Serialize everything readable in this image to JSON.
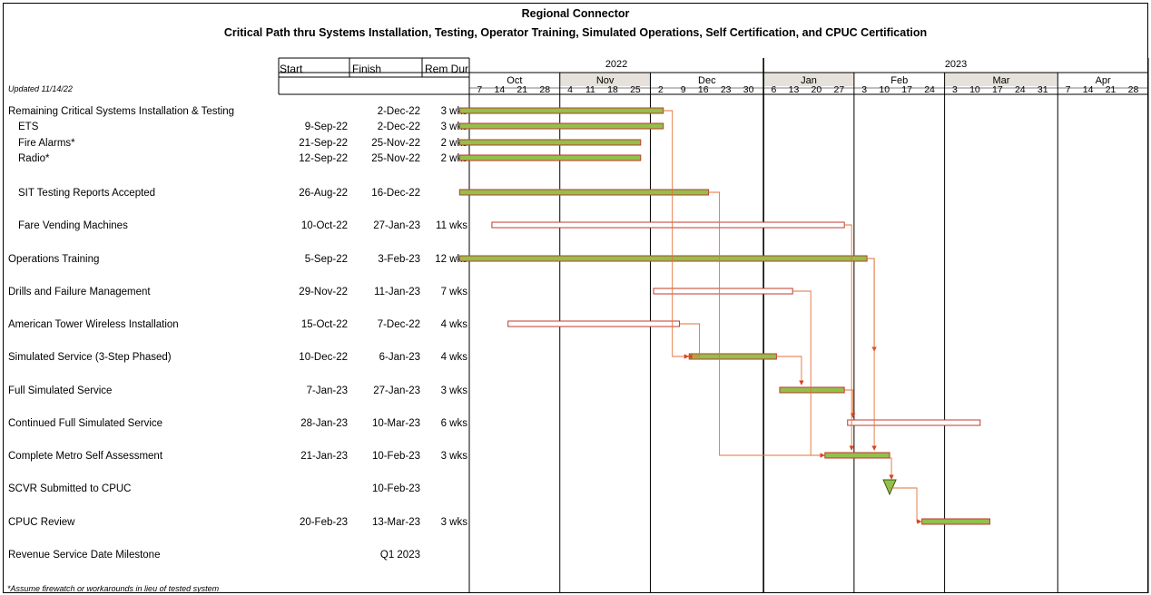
{
  "header": {
    "title": "Regional Connector",
    "subtitle": "Critical Path thru Systems Installation, Testing, Operator Training, Simulated Operations, Self Certification, and CPUC Certification",
    "updated": "Updated 11/14/22",
    "col_start": "Start",
    "col_finish": "Finish",
    "col_remdur": "Rem Dur",
    "footnote": "*Assume firewatch or workarounds in lieu of tested system"
  },
  "chart_data": {
    "type": "gantt",
    "years": [
      {
        "label": "2022",
        "months": [
          "Oct",
          "Nov",
          "Dec"
        ]
      },
      {
        "label": "2023",
        "months": [
          "Jan",
          "Feb",
          "Mar",
          "Apr"
        ]
      }
    ],
    "months": [
      {
        "label": "Oct",
        "start": "2022-10-03",
        "days": [
          "7",
          "14",
          "21",
          "28"
        ],
        "shaded": false
      },
      {
        "label": "Nov",
        "start": "2022-10-31",
        "days": [
          "4",
          "11",
          "18",
          "25"
        ],
        "shaded": true
      },
      {
        "label": "Dec",
        "start": "2022-11-28",
        "days": [
          "2",
          "9",
          "16",
          "23",
          "30"
        ],
        "shaded": false
      },
      {
        "label": "Jan",
        "start": "2023-01-02",
        "days": [
          "6",
          "13",
          "20",
          "27"
        ],
        "shaded": true
      },
      {
        "label": "Feb",
        "start": "2023-01-30",
        "days": [
          "3",
          "10",
          "17",
          "24"
        ],
        "shaded": false
      },
      {
        "label": "Mar",
        "start": "2023-02-27",
        "days": [
          "3",
          "10",
          "17",
          "24",
          "31"
        ],
        "shaded": true
      },
      {
        "label": "Apr",
        "start": "2023-04-03",
        "days": [
          "7",
          "14",
          "21",
          "28"
        ],
        "shaded": false
      }
    ],
    "timeline_end": "2023-05-01",
    "tasks": [
      {
        "name": "Remaining Critical Systems Installation & Testing",
        "start": "",
        "finish": "2-Dec-22",
        "dur": "3 wks",
        "bar_start": "2022-09-30",
        "bar_end": "2022-12-02",
        "style": "critical",
        "indent": false
      },
      {
        "name": "ETS",
        "start": "9-Sep-22",
        "finish": "2-Dec-22",
        "dur": "3 wks",
        "bar_start": "2022-09-30",
        "bar_end": "2022-12-02",
        "style": "critical",
        "indent": true
      },
      {
        "name": "Fire Alarms*",
        "start": "21-Sep-22",
        "finish": "25-Nov-22",
        "dur": "2 wks",
        "bar_start": "2022-09-30",
        "bar_end": "2022-11-25",
        "style": "critical",
        "indent": true
      },
      {
        "name": "Radio*",
        "start": "12-Sep-22",
        "finish": "25-Nov-22",
        "dur": "2 wks",
        "bar_start": "2022-09-30",
        "bar_end": "2022-11-25",
        "style": "critical",
        "indent": true
      },
      {
        "name": "SIT Testing Reports Accepted",
        "start": "26-Aug-22",
        "finish": "16-Dec-22",
        "dur": "",
        "bar_start": "2022-09-30",
        "bar_end": "2022-12-16",
        "style": "critical",
        "indent": true
      },
      {
        "name": "Fare Vending Machines",
        "start": "10-Oct-22",
        "finish": "27-Jan-23",
        "dur": "11 wks",
        "bar_start": "2022-10-10",
        "bar_end": "2023-01-27",
        "style": "noncritical",
        "indent": true
      },
      {
        "name": "Operations Training",
        "start": "5-Sep-22",
        "finish": "3-Feb-23",
        "dur": "12 wks",
        "bar_start": "2022-09-30",
        "bar_end": "2023-02-03",
        "style": "critical",
        "indent": false
      },
      {
        "name": "Drills and Failure Management",
        "start": "29-Nov-22",
        "finish": "11-Jan-23",
        "dur": "7 wks",
        "bar_start": "2022-11-29",
        "bar_end": "2023-01-11",
        "style": "noncritical",
        "indent": false
      },
      {
        "name": "American Tower Wireless Installation",
        "start": "15-Oct-22",
        "finish": "7-Dec-22",
        "dur": "4 wks",
        "bar_start": "2022-10-15",
        "bar_end": "2022-12-07",
        "style": "noncritical",
        "indent": false
      },
      {
        "name": "Simulated Service (3-Step Phased)",
        "start": "10-Dec-22",
        "finish": "6-Jan-23",
        "dur": "4 wks",
        "bar_start": "2022-12-10",
        "bar_end": "2023-01-06",
        "style": "critical",
        "indent": false
      },
      {
        "name": "Full Simulated Service",
        "start": "7-Jan-23",
        "finish": "27-Jan-23",
        "dur": "3 wks",
        "bar_start": "2023-01-07",
        "bar_end": "2023-01-27",
        "style": "critical",
        "indent": false
      },
      {
        "name": "Continued Full Simulated Service",
        "start": "28-Jan-23",
        "finish": "10-Mar-23",
        "dur": "6 wks",
        "bar_start": "2023-01-28",
        "bar_end": "2023-03-10",
        "style": "noncritical",
        "indent": false
      },
      {
        "name": "Complete Metro Self Assessment",
        "start": "21-Jan-23",
        "finish": "10-Feb-23",
        "dur": "3 wks",
        "bar_start": "2023-01-21",
        "bar_end": "2023-02-10",
        "style": "critical",
        "indent": false
      },
      {
        "name": "SCVR Submitted to CPUC",
        "start": "",
        "finish": "10-Feb-23",
        "dur": "",
        "bar_start": "2023-02-10",
        "bar_end": "2023-02-10",
        "style": "milestone",
        "indent": false
      },
      {
        "name": "CPUC Review",
        "start": "20-Feb-23",
        "finish": "13-Mar-23",
        "dur": "3 wks",
        "bar_start": "2023-02-20",
        "bar_end": "2023-03-13",
        "style": "critical",
        "indent": false
      },
      {
        "name": "Revenue Service Date Milestone",
        "start": "",
        "finish": "Q1 2023",
        "dur": "",
        "bar_start": "",
        "bar_end": "",
        "style": "none",
        "indent": false
      }
    ],
    "links": [
      {
        "from": 0,
        "to": 9
      },
      {
        "from": 4,
        "to": 12
      },
      {
        "from": 5,
        "to": 12
      },
      {
        "from": 6,
        "to": 9
      },
      {
        "from": 6,
        "to": 12
      },
      {
        "from": 7,
        "to": 12
      },
      {
        "from": 8,
        "to": 9
      },
      {
        "from": 9,
        "to": 10
      },
      {
        "from": 10,
        "to": 11
      },
      {
        "from": 12,
        "to": 13
      },
      {
        "from": 13,
        "to": 14
      }
    ],
    "colors": {
      "critical_fill": "#92c04c",
      "bar_outline": "#c0392b",
      "noncritical_fill": "#ffffff",
      "link": "#e2723a",
      "month_shade": "#e6e1da"
    }
  }
}
